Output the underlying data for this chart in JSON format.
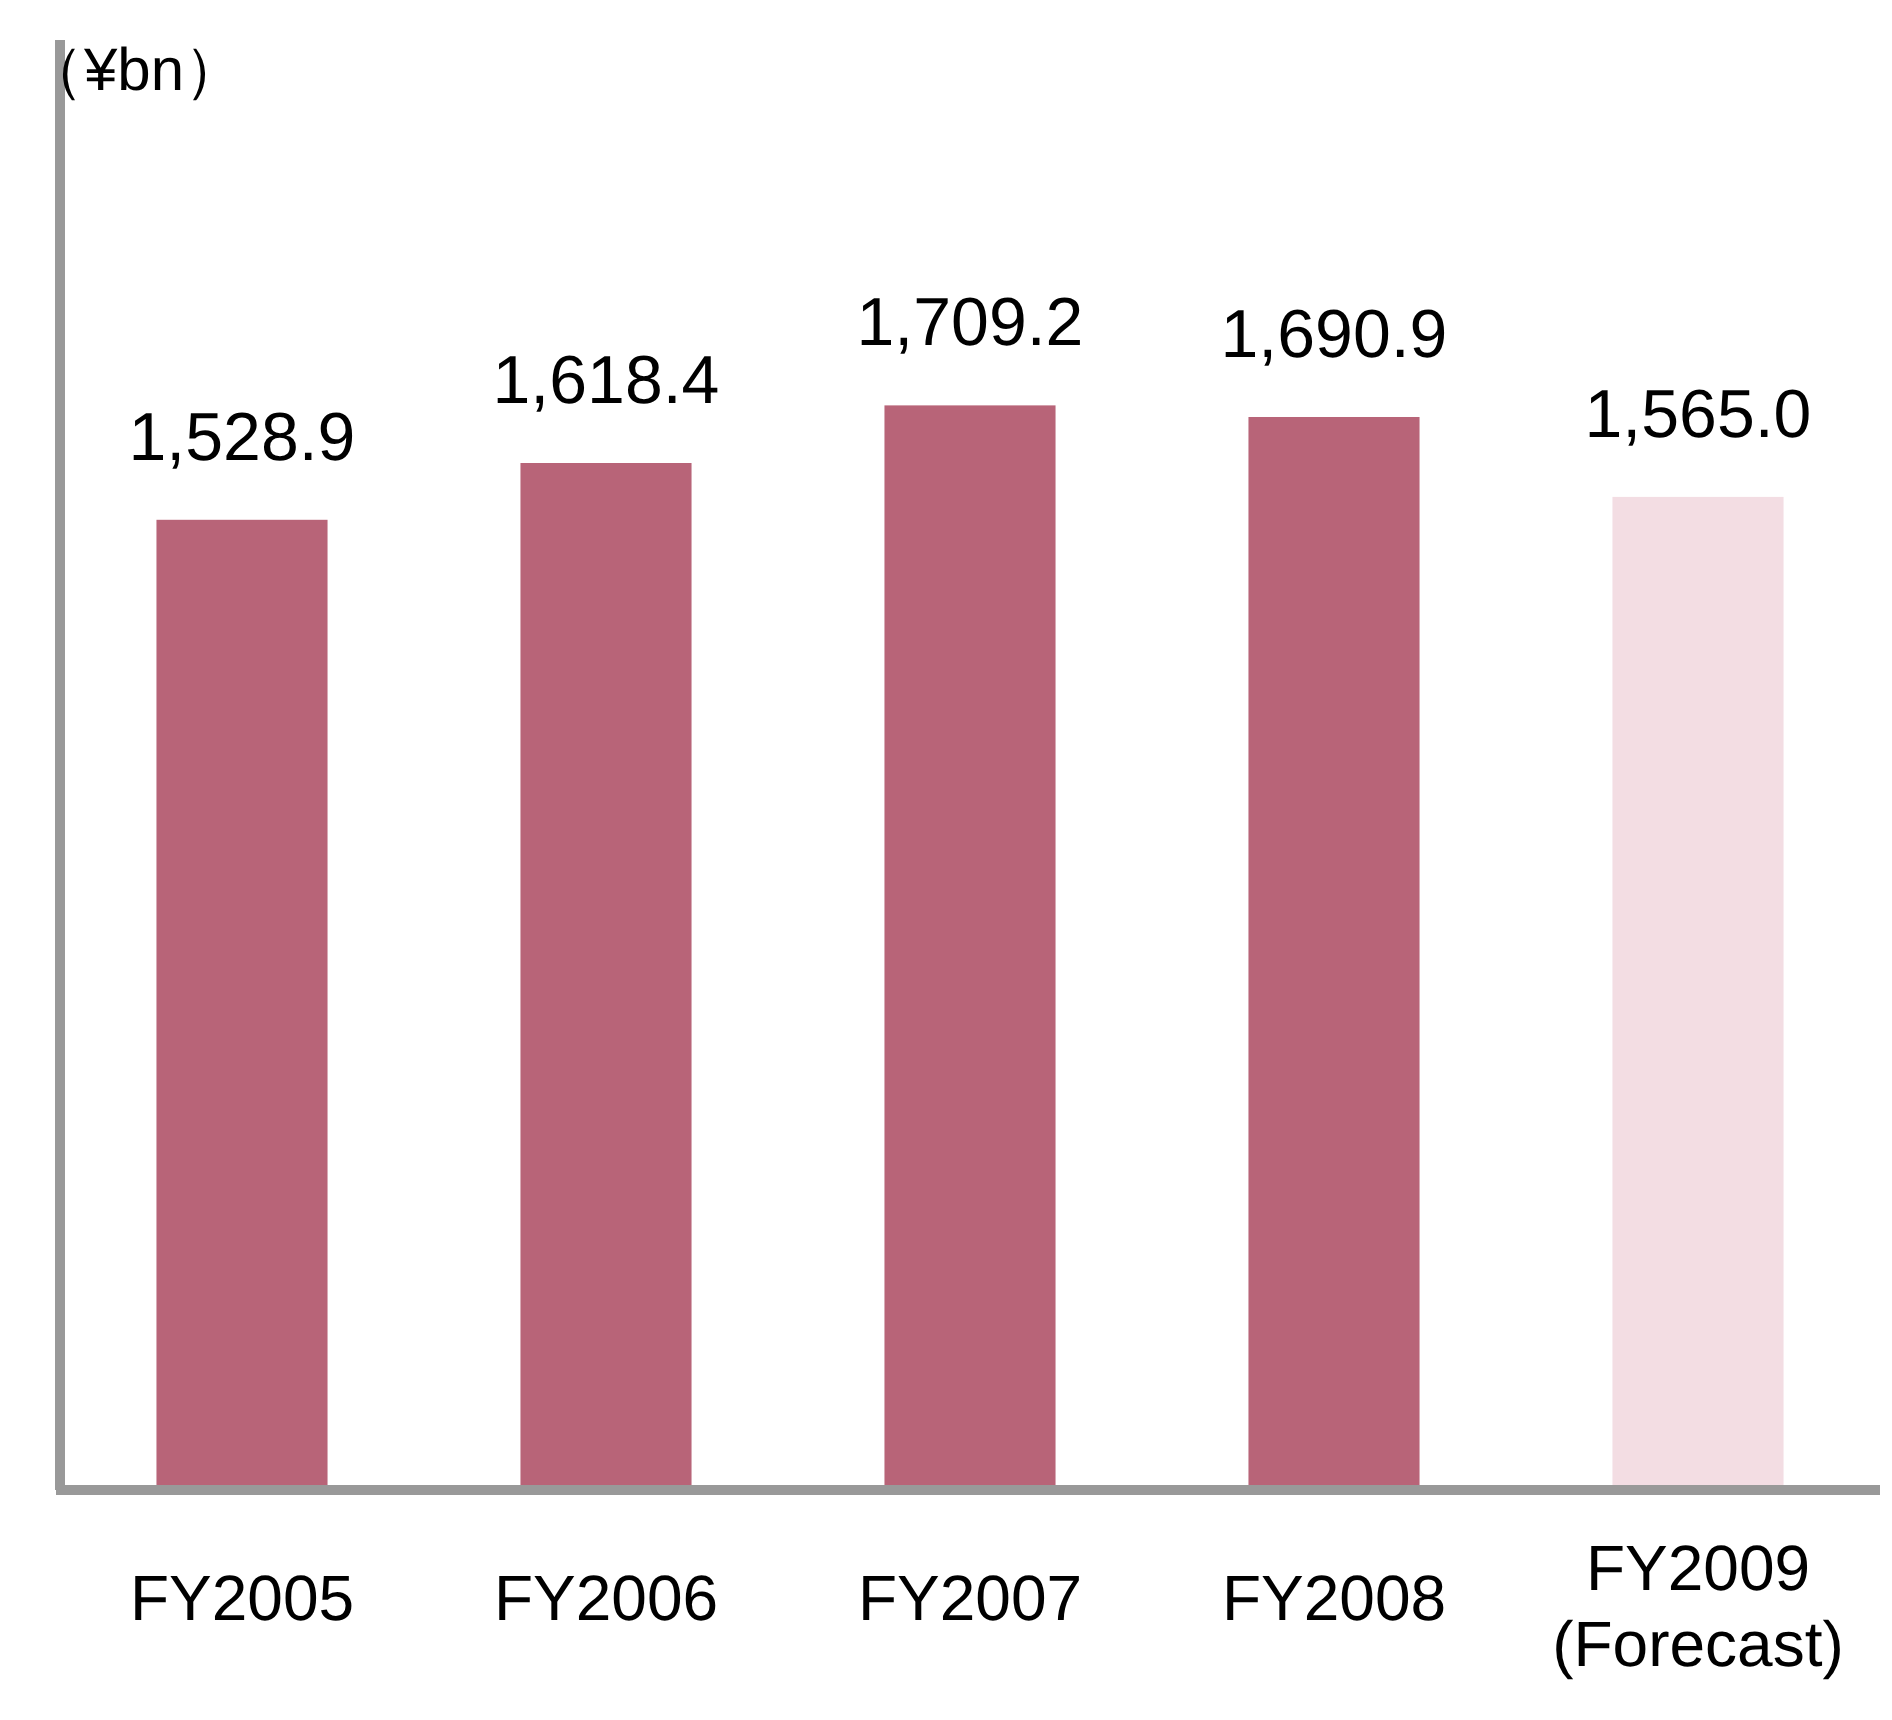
{
  "chart_data": {
    "type": "bar",
    "annotations": [
      "（¥bn）"
    ],
    "categories": [
      "FY2005",
      "FY2006",
      "FY2007",
      "FY2008",
      "FY2009\n(Forecast)"
    ],
    "values": [
      1528.9,
      1618.4,
      1709.2,
      1690.9,
      1565.0
    ],
    "value_labels": [
      "1,528.9",
      "1,618.4",
      "1,709.2",
      "1,690.9",
      "1,565.0"
    ],
    "colors": [
      "#b86478",
      "#b86478",
      "#b86478",
      "#b86478",
      "#f3dde3"
    ]
  }
}
